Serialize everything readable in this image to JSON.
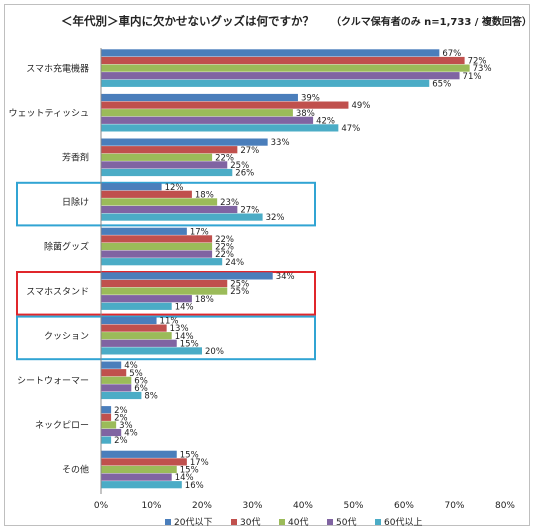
{
  "title": {
    "main": "＜年代別＞車内に欠かせないグッズは何ですか？",
    "note": "（クルマ保有者のみ n=1,733 / 複数回答）"
  },
  "chart_data": {
    "type": "bar",
    "orientation": "horizontal",
    "categories": [
      "スマホ充電機器",
      "ウェットティッシュ",
      "芳香剤",
      "日除け",
      "除菌グッズ",
      "スマホスタンド",
      "クッション",
      "シートウォーマー",
      "ネックピロー",
      "その他"
    ],
    "series": [
      {
        "name": "20代以下",
        "color": "#4a7ebb",
        "values": [
          67,
          39,
          33,
          12,
          17,
          34,
          11,
          4,
          2,
          15
        ]
      },
      {
        "name": "30代",
        "color": "#c0504d",
        "values": [
          72,
          49,
          27,
          18,
          22,
          25,
          13,
          5,
          2,
          17
        ]
      },
      {
        "name": "40代",
        "color": "#9bbb59",
        "values": [
          73,
          38,
          22,
          23,
          22,
          25,
          14,
          6,
          3,
          15
        ]
      },
      {
        "name": "50代",
        "color": "#8064a2",
        "values": [
          71,
          42,
          25,
          27,
          22,
          18,
          15,
          6,
          4,
          14
        ]
      },
      {
        "name": "60代以上",
        "color": "#4bacc6",
        "values": [
          65,
          47,
          26,
          32,
          24,
          14,
          20,
          8,
          2,
          16
        ]
      }
    ],
    "value_format": "%",
    "xlim": [
      0,
      80
    ],
    "xticks": [
      "0%",
      "10%",
      "20%",
      "30%",
      "40%",
      "50%",
      "60%",
      "70%",
      "80%"
    ],
    "legend_position": "bottom",
    "grid": false,
    "highlights": [
      {
        "category": "日除け",
        "color": "#31a4d3"
      },
      {
        "category": "スマホスタンド",
        "color": "#e0262b"
      },
      {
        "category": "クッション",
        "color": "#31a4d3"
      }
    ]
  }
}
